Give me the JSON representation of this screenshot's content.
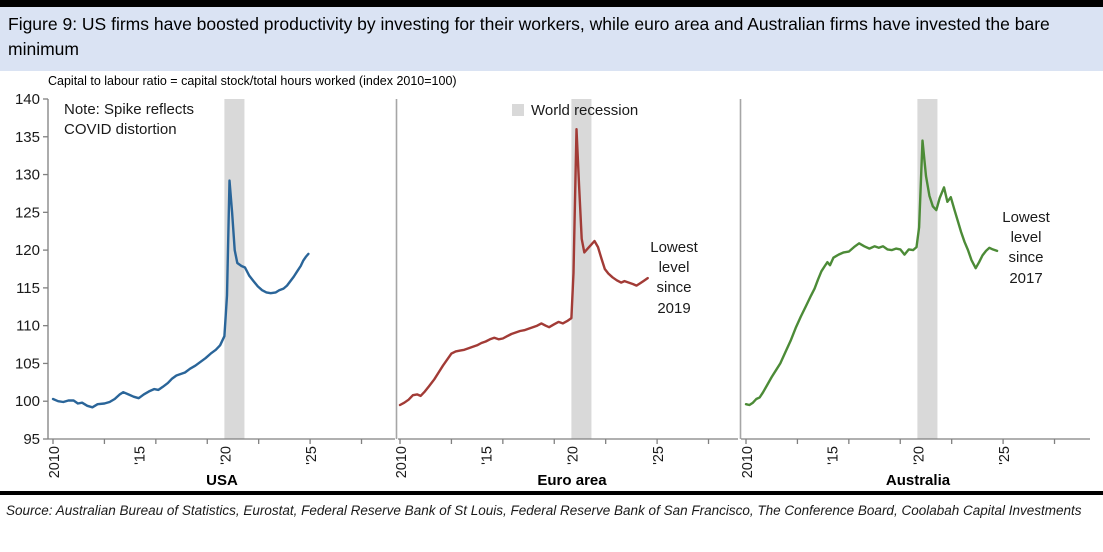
{
  "title": "Figure 9: US firms have boosted productivity by investing for their workers, while euro area and Australian firms have invested the bare minimum",
  "subtitle": "Capital to labour ratio = capital stock/total hours worked (index 2010=100)",
  "source": "Source: Australian Bureau of Statistics, Eurostat, Federal Reserve Bank of St Louis, Federal Reserve Bank of San Francisco, The Conference Board, Coolabah Capital Investments",
  "colors": {
    "title_bg": "#DAE3F3",
    "recession_band": "#D9D9D9",
    "axis": "#808080",
    "separator": "#A6A6A6",
    "usa_line": "#2A6599",
    "euro_line": "#A23B36",
    "australia_line": "#4C8B37"
  },
  "legend": {
    "label": "World recession",
    "color": "#D9D9D9"
  },
  "annotations": {
    "usa_note": "Note: Spike reflects COVID distortion",
    "euro_lowest": "Lowest level since 2019",
    "australia_lowest": "Lowest level since 2017"
  },
  "chart_data": {
    "type": "line",
    "title": "Figure 9: US firms have boosted productivity by investing for their workers, while euro area and Australian firms have invested the bare minimum",
    "ylabel": "Capital to labour ratio = capital stock/total hours worked (index 2010=100)",
    "ylim": [
      95,
      140
    ],
    "y_axis": {
      "min": 95,
      "max": 140,
      "step": 5
    },
    "x_tick_labels": [
      {
        "year": 2010,
        "label": "2010"
      },
      {
        "year": 2015,
        "label": "'15"
      },
      {
        "year": 2020,
        "label": "'20"
      },
      {
        "year": 2025,
        "label": "'25"
      }
    ],
    "recession_band_years": [
      2020.0,
      2021.17
    ],
    "grid": false,
    "legend_position": "top-center",
    "panels": [
      {
        "name": "USA",
        "color": "#2A6599",
        "points": [
          [
            2010.0,
            100.3
          ],
          [
            2010.3,
            100.0
          ],
          [
            2010.6,
            99.9
          ],
          [
            2010.9,
            100.1
          ],
          [
            2011.2,
            100.1
          ],
          [
            2011.45,
            99.7
          ],
          [
            2011.7,
            99.8
          ],
          [
            2012.0,
            99.4
          ],
          [
            2012.3,
            99.2
          ],
          [
            2012.6,
            99.6
          ],
          [
            2013.0,
            99.7
          ],
          [
            2013.3,
            99.9
          ],
          [
            2013.6,
            100.3
          ],
          [
            2013.9,
            100.9
          ],
          [
            2014.1,
            101.2
          ],
          [
            2014.4,
            100.9
          ],
          [
            2014.7,
            100.6
          ],
          [
            2015.0,
            100.4
          ],
          [
            2015.3,
            100.9
          ],
          [
            2015.6,
            101.3
          ],
          [
            2015.9,
            101.6
          ],
          [
            2016.15,
            101.5
          ],
          [
            2016.4,
            101.9
          ],
          [
            2016.7,
            102.4
          ],
          [
            2016.95,
            103.0
          ],
          [
            2017.2,
            103.4
          ],
          [
            2017.45,
            103.6
          ],
          [
            2017.7,
            103.8
          ],
          [
            2018.0,
            104.3
          ],
          [
            2018.3,
            104.7
          ],
          [
            2018.6,
            105.2
          ],
          [
            2018.9,
            105.7
          ],
          [
            2019.2,
            106.3
          ],
          [
            2019.5,
            106.8
          ],
          [
            2019.75,
            107.4
          ],
          [
            2020.0,
            108.6
          ],
          [
            2020.15,
            114.0
          ],
          [
            2020.3,
            129.2
          ],
          [
            2020.45,
            125.0
          ],
          [
            2020.6,
            120.0
          ],
          [
            2020.75,
            118.3
          ],
          [
            2021.0,
            117.9
          ],
          [
            2021.2,
            117.7
          ],
          [
            2021.45,
            116.6
          ],
          [
            2021.7,
            115.9
          ],
          [
            2021.95,
            115.2
          ],
          [
            2022.2,
            114.7
          ],
          [
            2022.45,
            114.4
          ],
          [
            2022.7,
            114.3
          ],
          [
            2023.0,
            114.4
          ],
          [
            2023.2,
            114.7
          ],
          [
            2023.45,
            114.9
          ],
          [
            2023.65,
            115.3
          ],
          [
            2023.85,
            115.9
          ],
          [
            2024.05,
            116.5
          ],
          [
            2024.25,
            117.2
          ],
          [
            2024.45,
            117.9
          ],
          [
            2024.6,
            118.6
          ],
          [
            2024.75,
            119.1
          ],
          [
            2024.9,
            119.5
          ]
        ]
      },
      {
        "name": "Euro area",
        "color": "#A23B36",
        "points": [
          [
            2010.0,
            99.5
          ],
          [
            2010.25,
            99.8
          ],
          [
            2010.5,
            100.2
          ],
          [
            2010.75,
            100.8
          ],
          [
            2011.0,
            100.9
          ],
          [
            2011.2,
            100.7
          ],
          [
            2011.45,
            101.3
          ],
          [
            2011.7,
            102.0
          ],
          [
            2012.0,
            102.9
          ],
          [
            2012.25,
            103.8
          ],
          [
            2012.5,
            104.7
          ],
          [
            2012.75,
            105.5
          ],
          [
            2013.0,
            106.3
          ],
          [
            2013.25,
            106.6
          ],
          [
            2013.5,
            106.7
          ],
          [
            2013.75,
            106.8
          ],
          [
            2014.0,
            107.0
          ],
          [
            2014.25,
            107.2
          ],
          [
            2014.5,
            107.4
          ],
          [
            2014.75,
            107.7
          ],
          [
            2015.0,
            107.9
          ],
          [
            2015.25,
            108.2
          ],
          [
            2015.5,
            108.4
          ],
          [
            2015.75,
            108.2
          ],
          [
            2016.0,
            108.3
          ],
          [
            2016.25,
            108.6
          ],
          [
            2016.5,
            108.9
          ],
          [
            2016.75,
            109.1
          ],
          [
            2017.0,
            109.3
          ],
          [
            2017.25,
            109.4
          ],
          [
            2017.5,
            109.6
          ],
          [
            2017.75,
            109.8
          ],
          [
            2018.0,
            110.0
          ],
          [
            2018.25,
            110.3
          ],
          [
            2018.5,
            110.0
          ],
          [
            2018.7,
            109.8
          ],
          [
            2019.0,
            110.2
          ],
          [
            2019.25,
            110.5
          ],
          [
            2019.5,
            110.3
          ],
          [
            2019.75,
            110.6
          ],
          [
            2020.0,
            111.0
          ],
          [
            2020.12,
            117.0
          ],
          [
            2020.3,
            136.0
          ],
          [
            2020.45,
            128.5
          ],
          [
            2020.6,
            121.5
          ],
          [
            2020.75,
            119.7
          ],
          [
            2020.95,
            120.2
          ],
          [
            2021.15,
            120.7
          ],
          [
            2021.35,
            121.2
          ],
          [
            2021.55,
            120.4
          ],
          [
            2021.75,
            118.9
          ],
          [
            2021.95,
            117.5
          ],
          [
            2022.15,
            116.9
          ],
          [
            2022.4,
            116.4
          ],
          [
            2022.65,
            116.0
          ],
          [
            2022.9,
            115.7
          ],
          [
            2023.1,
            115.9
          ],
          [
            2023.35,
            115.7
          ],
          [
            2023.6,
            115.5
          ],
          [
            2023.8,
            115.3
          ],
          [
            2024.0,
            115.6
          ],
          [
            2024.2,
            115.9
          ],
          [
            2024.45,
            116.3
          ]
        ]
      },
      {
        "name": "Australia",
        "color": "#4C8B37",
        "points": [
          [
            2010.0,
            99.6
          ],
          [
            2010.2,
            99.5
          ],
          [
            2010.4,
            99.8
          ],
          [
            2010.6,
            100.3
          ],
          [
            2010.8,
            100.5
          ],
          [
            2011.0,
            101.2
          ],
          [
            2011.25,
            102.2
          ],
          [
            2011.5,
            103.2
          ],
          [
            2011.75,
            104.1
          ],
          [
            2012.0,
            105.0
          ],
          [
            2012.3,
            106.5
          ],
          [
            2012.6,
            108.0
          ],
          [
            2012.9,
            109.7
          ],
          [
            2013.2,
            111.2
          ],
          [
            2013.5,
            112.6
          ],
          [
            2013.8,
            114.0
          ],
          [
            2014.0,
            114.9
          ],
          [
            2014.2,
            116.1
          ],
          [
            2014.4,
            117.2
          ],
          [
            2014.6,
            117.9
          ],
          [
            2014.75,
            118.4
          ],
          [
            2014.9,
            118.0
          ],
          [
            2015.1,
            119.0
          ],
          [
            2015.4,
            119.4
          ],
          [
            2015.7,
            119.7
          ],
          [
            2016.0,
            119.8
          ],
          [
            2016.3,
            120.4
          ],
          [
            2016.6,
            120.9
          ],
          [
            2016.9,
            120.5
          ],
          [
            2017.2,
            120.2
          ],
          [
            2017.5,
            120.5
          ],
          [
            2017.75,
            120.3
          ],
          [
            2018.0,
            120.5
          ],
          [
            2018.25,
            120.1
          ],
          [
            2018.5,
            120.0
          ],
          [
            2018.75,
            120.2
          ],
          [
            2019.0,
            120.1
          ],
          [
            2019.25,
            119.4
          ],
          [
            2019.5,
            120.1
          ],
          [
            2019.75,
            120.0
          ],
          [
            2019.95,
            120.4
          ],
          [
            2020.1,
            123.0
          ],
          [
            2020.3,
            134.5
          ],
          [
            2020.5,
            129.8
          ],
          [
            2020.7,
            127.2
          ],
          [
            2020.9,
            125.8
          ],
          [
            2021.1,
            125.3
          ],
          [
            2021.3,
            126.9
          ],
          [
            2021.55,
            128.3
          ],
          [
            2021.75,
            126.4
          ],
          [
            2021.95,
            127.0
          ],
          [
            2022.15,
            125.4
          ],
          [
            2022.35,
            123.9
          ],
          [
            2022.55,
            122.4
          ],
          [
            2022.75,
            121.1
          ],
          [
            2022.95,
            120.0
          ],
          [
            2023.15,
            118.7
          ],
          [
            2023.4,
            117.6
          ],
          [
            2023.6,
            118.4
          ],
          [
            2023.8,
            119.3
          ],
          [
            2024.0,
            119.9
          ],
          [
            2024.2,
            120.3
          ],
          [
            2024.4,
            120.1
          ],
          [
            2024.65,
            119.9
          ]
        ]
      }
    ]
  }
}
